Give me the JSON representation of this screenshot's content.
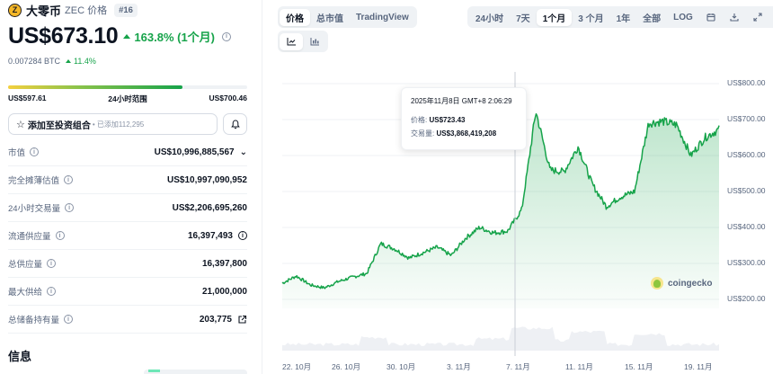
{
  "coin": {
    "name": "大零币",
    "symbol_label": "ZEC 价格",
    "rank": "#16",
    "logo_glyph": "ⓩ",
    "price": "US$673.10",
    "change": "163.8% (1个月)",
    "btc_price": "0.007284 BTC",
    "btc_change": "11.4%"
  },
  "range_24h": {
    "low": "US$597.61",
    "label": "24小时范围",
    "high": "US$700.46",
    "fill_percent": 73
  },
  "portfolio": {
    "button_label": "添加至投资组合",
    "added_text": "• 已添加112,295",
    "star_icon": "☆",
    "bell_icon": "bell-icon"
  },
  "stats": [
    {
      "label": "市值",
      "value": "US$10,996,885,567",
      "suffix": "⌵"
    },
    {
      "label": "完全摊薄估值",
      "value": "US$10,997,090,952",
      "suffix": ""
    },
    {
      "label": "24小时交易量",
      "value": "US$2,206,695,260",
      "suffix": ""
    },
    {
      "label": "流通供应量",
      "value": "16,397,493",
      "suffix": "info"
    },
    {
      "label": "总供应量",
      "value": "16,397,800",
      "suffix": ""
    },
    {
      "label": "最大供给",
      "value": "21,000,000",
      "suffix": ""
    },
    {
      "label": "总储备持有量",
      "value": "203,775",
      "suffix": "external"
    }
  ],
  "section_title": "信息",
  "chart_tabs": [
    {
      "label": "价格",
      "active": true
    },
    {
      "label": "总市值",
      "active": false
    },
    {
      "label": "TradingView",
      "active": false
    }
  ],
  "range_tabs": [
    {
      "label": "24小时",
      "active": false
    },
    {
      "label": "7天",
      "active": false
    },
    {
      "label": "1个月",
      "active": true
    },
    {
      "label": "3 个月",
      "active": false
    },
    {
      "label": "1年",
      "active": false
    },
    {
      "label": "全部",
      "active": false
    },
    {
      "label": "LOG",
      "active": false
    }
  ],
  "range_icons": [
    "calendar-icon",
    "download-icon",
    "expand-icon"
  ],
  "chart_type_icons": [
    {
      "name": "line-chart-icon",
      "active": true
    },
    {
      "name": "candlestick-chart-icon",
      "active": false
    }
  ],
  "tooltip": {
    "date": "2025年11月8日 GMT+8 2:06:29",
    "price_label": "价格:",
    "price_value": "US$723.43",
    "volume_label": "交易量:",
    "volume_value": "US$3,868,419,208"
  },
  "watermark": "coingecko",
  "colors": {
    "accent_green": "#16a34a",
    "line_green": "#16a34a",
    "text_primary": "#0d1421",
    "text_secondary": "#58667e"
  },
  "chart_data": {
    "type": "area",
    "title": "ZEC 价格 (1个月)",
    "xlabel": "",
    "ylabel": "",
    "x_ticks": [
      "22. 10月",
      "26. 10月",
      "30. 10月",
      "3. 11月",
      "7. 11月",
      "11. 11月",
      "15. 11月",
      "19. 11月"
    ],
    "y_ticks": [
      "US$200.00",
      "US$300.00",
      "US$400.00",
      "US$500.00",
      "US$600.00",
      "US$700.00",
      "US$800.00"
    ],
    "ylim": [
      200,
      800
    ],
    "grid": true,
    "series": [
      {
        "name": "价格",
        "x": [
          "21.10",
          "22.10",
          "23.10",
          "24.10",
          "25.10",
          "26.10",
          "27.10",
          "28.10",
          "29.10",
          "30.10",
          "31.10",
          "1.11",
          "2.11",
          "3.11",
          "4.11",
          "5.11",
          "6.11",
          "7.11",
          "8.11",
          "9.11",
          "10.11",
          "11.11",
          "12.11",
          "13.11",
          "14.11",
          "15.11",
          "16.11",
          "17.11",
          "18.11",
          "19.11",
          "20.11",
          "21.11"
        ],
        "values": [
          245,
          265,
          240,
          232,
          250,
          262,
          272,
          355,
          340,
          315,
          330,
          345,
          322,
          370,
          400,
          385,
          390,
          450,
          723,
          560,
          555,
          625,
          520,
          458,
          485,
          500,
          690,
          695,
          685,
          600,
          650,
          673
        ]
      },
      {
        "name": "交易量",
        "note": "relative volume area at bottom, unscaled"
      }
    ],
    "tooltip_point": {
      "date": "2025-11-08 02:06:29",
      "price": 723.43,
      "volume": 3868419208
    }
  }
}
